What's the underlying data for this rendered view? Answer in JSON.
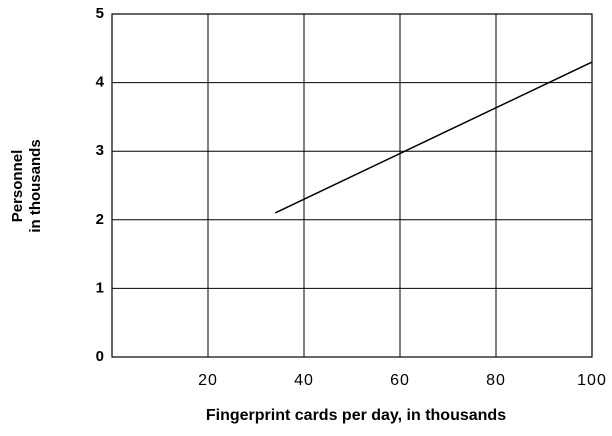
{
  "chart_data": {
    "type": "line",
    "xlabel": "Fingerprint cards per day, in thousands",
    "ylabel": [
      "Personnel",
      "in thousands"
    ],
    "x": [
      34,
      100
    ],
    "series": [
      {
        "color": "#000000",
        "values": [
          2.1,
          4.3
        ]
      }
    ],
    "xlim": [
      0,
      100
    ],
    "xticks": [
      20,
      40,
      60,
      80,
      100
    ],
    "ylim": [
      0,
      5
    ],
    "yticks": [
      0,
      1,
      2,
      3,
      4,
      5
    ],
    "grid": true
  }
}
